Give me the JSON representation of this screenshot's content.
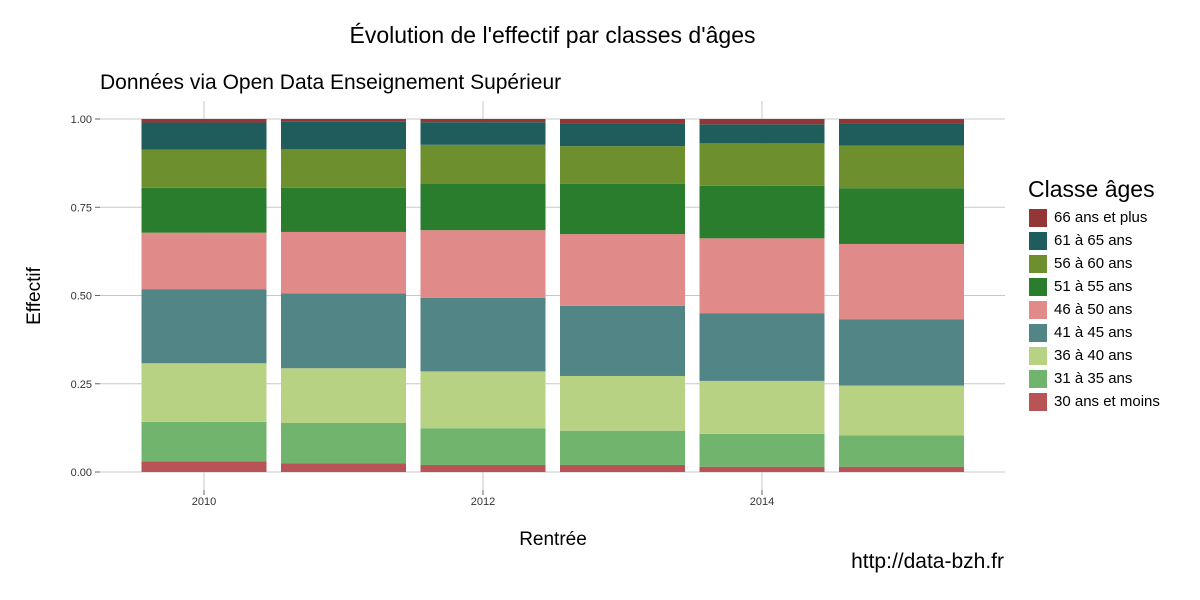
{
  "title": "Évolution de l'effectif par classes d'âges",
  "subtitle": "Données via Open Data Enseignement Supérieur",
  "credit": "http://data-bzh.fr",
  "chart_data": {
    "type": "bar",
    "stacked": true,
    "xlabel": "Rentrée",
    "ylabel": "Effectif",
    "ylim": [
      0,
      1
    ],
    "yticks": [
      "0.00",
      "0.25",
      "0.50",
      "0.75",
      "1.00"
    ],
    "ytick_values": [
      0,
      0.25,
      0.5,
      0.75,
      1
    ],
    "xticks": [
      "2010",
      "2012",
      "2014"
    ],
    "xtick_values": [
      2010,
      2012,
      2014
    ],
    "categories": [
      2010,
      2011,
      2012,
      2013,
      2014,
      2015
    ],
    "grid": true,
    "legend_position": "right",
    "legend_title": "Classe âges",
    "series": [
      {
        "name": "30 ans et moins",
        "color": "#b85456",
        "values": [
          0.03,
          0.025,
          0.02,
          0.02,
          0.015,
          0.015
        ]
      },
      {
        "name": "31 à 35 ans",
        "color": "#71b46e",
        "values": [
          0.112,
          0.114,
          0.104,
          0.097,
          0.093,
          0.089
        ]
      },
      {
        "name": "36 à 40 ans",
        "color": "#b8d283",
        "values": [
          0.166,
          0.155,
          0.161,
          0.155,
          0.15,
          0.141
        ]
      },
      {
        "name": "41 à 45 ans",
        "color": "#528686",
        "values": [
          0.21,
          0.212,
          0.208,
          0.199,
          0.192,
          0.187
        ]
      },
      {
        "name": "46 à 50 ans",
        "color": "#e08a8a",
        "values": [
          0.16,
          0.174,
          0.192,
          0.203,
          0.212,
          0.214
        ]
      },
      {
        "name": "51 à 55 ans",
        "color": "#2a7d2d",
        "values": [
          0.127,
          0.125,
          0.132,
          0.142,
          0.149,
          0.158
        ]
      },
      {
        "name": "56 à 60 ans",
        "color": "#6e8f2e",
        "values": [
          0.108,
          0.11,
          0.11,
          0.107,
          0.12,
          0.121
        ]
      },
      {
        "name": "61 à 65 ans",
        "color": "#1f5d5d",
        "values": [
          0.077,
          0.077,
          0.064,
          0.064,
          0.054,
          0.061
        ]
      },
      {
        "name": "66 ans et plus",
        "color": "#943536",
        "values": [
          0.01,
          0.008,
          0.009,
          0.013,
          0.015,
          0.014
        ]
      }
    ]
  }
}
